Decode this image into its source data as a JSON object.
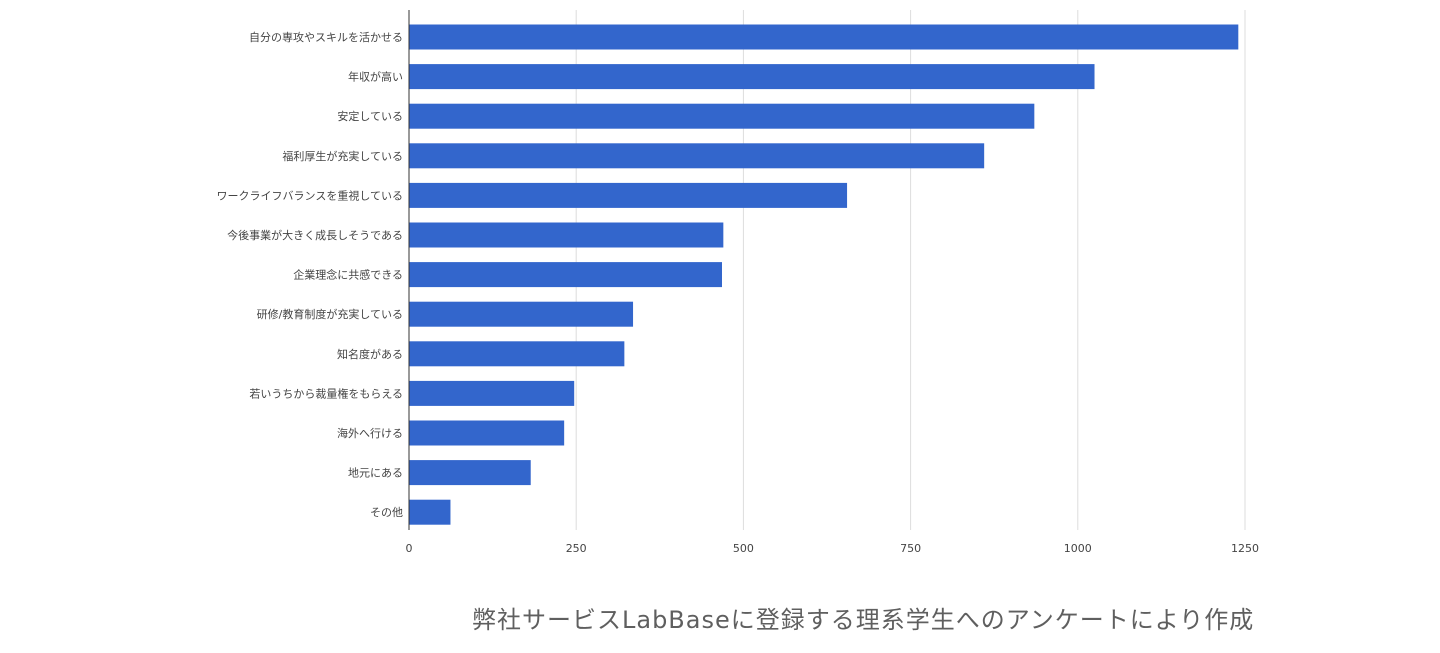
{
  "chart_data": {
    "type": "bar",
    "orientation": "horizontal",
    "categories": [
      "自分の専攻やスキルを活かせる",
      "年収が高い",
      "安定している",
      "福利厚生が充実している",
      "ワークライフバランスを重視している",
      "今後事業が大きく成長しそうである",
      "企業理念に共感できる",
      "研修/教育制度が充実している",
      "知名度がある",
      "若いうちから裁量権をもらえる",
      "海外へ行ける",
      "地元にある",
      "その他"
    ],
    "values": [
      1240,
      1025,
      935,
      860,
      655,
      470,
      468,
      335,
      322,
      247,
      232,
      182,
      62
    ],
    "xlim": [
      0,
      1250
    ],
    "xticks": [
      0,
      250,
      500,
      750,
      1000,
      1250
    ],
    "grid": true,
    "bar_color": "#3366cc"
  },
  "source_note": "弊社サービスLabBaseに登録する理系学生へのアンケートにより作成"
}
